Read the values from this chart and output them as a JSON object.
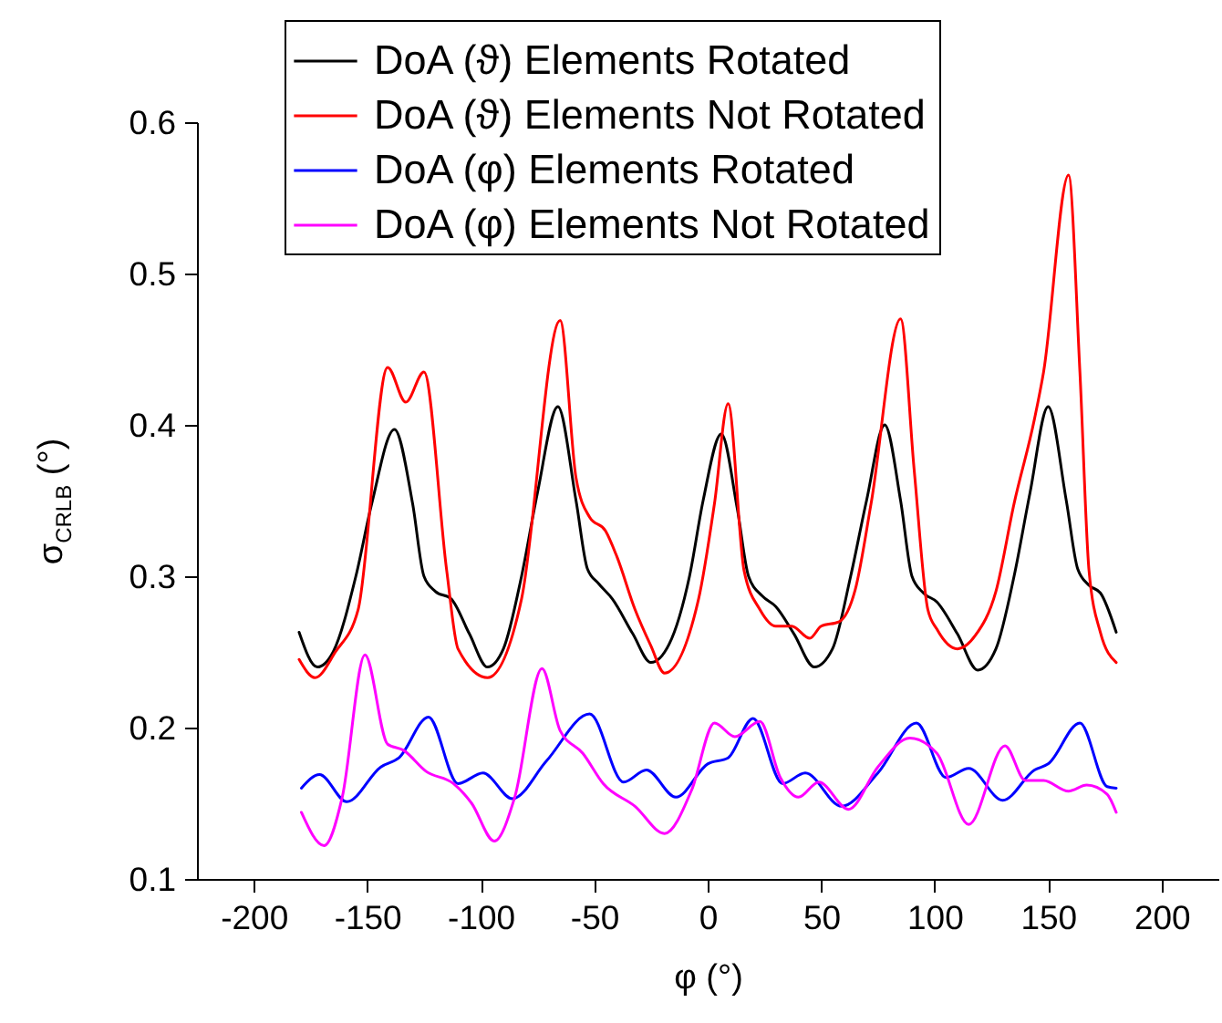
{
  "chart_data": {
    "type": "line",
    "xlabel": "φ (°)",
    "ylabel": "σ$_{CRLB}$ (°)",
    "xlim": [
      -225,
      225
    ],
    "ylim": [
      0.1,
      0.6
    ],
    "xticks": [
      -200,
      -150,
      -100,
      -50,
      0,
      50,
      100,
      150,
      200
    ],
    "yticks": [
      0.1,
      0.2,
      0.3,
      0.4,
      0.5,
      0.6
    ],
    "legend": "top",
    "grid": false,
    "series": [
      {
        "name": "DoA (ϑ) Elements Rotated",
        "color": "#000000",
        "x": [
          -180,
          -172,
          -165,
          -155,
          -148,
          -138,
          -130,
          -125,
          -120,
          -113,
          -105,
          -97,
          -90,
          -82,
          -75,
          -66,
          -58,
          -53,
          -48,
          -42,
          -33,
          -25,
          -17,
          -8,
          -2,
          6,
          13,
          18,
          24,
          30,
          38,
          47,
          55,
          63,
          70,
          78,
          85,
          90,
          95,
          101,
          110,
          119,
          127,
          135,
          142,
          150,
          158,
          163,
          168,
          173,
          180
        ],
        "values": [
          0.263,
          0.24,
          0.25,
          0.3,
          0.348,
          0.397,
          0.348,
          0.3,
          0.29,
          0.285,
          0.262,
          0.24,
          0.252,
          0.3,
          0.355,
          0.412,
          0.35,
          0.305,
          0.295,
          0.285,
          0.262,
          0.243,
          0.255,
          0.3,
          0.35,
          0.394,
          0.345,
          0.3,
          0.287,
          0.28,
          0.262,
          0.24,
          0.252,
          0.3,
          0.35,
          0.4,
          0.35,
          0.3,
          0.289,
          0.283,
          0.262,
          0.238,
          0.252,
          0.3,
          0.355,
          0.412,
          0.35,
          0.305,
          0.294,
          0.289,
          0.263
        ]
      },
      {
        "name": "DoA (ϑ) Elements Not Rotated",
        "color": "#ff0000",
        "x": [
          -180,
          -173,
          -164,
          -154,
          -141,
          -133,
          -125,
          -115,
          -110,
          -97,
          -82,
          -65,
          -58,
          -52,
          -45,
          -40,
          -32,
          -25,
          -19,
          -4,
          3,
          9,
          16,
          23,
          30,
          37,
          45,
          50,
          58,
          65,
          72,
          85,
          91,
          97,
          101,
          110,
          118,
          127,
          135,
          144,
          148,
          159,
          164,
          168,
          173,
          180
        ],
        "values": [
          0.245,
          0.233,
          0.25,
          0.278,
          0.438,
          0.415,
          0.435,
          0.304,
          0.252,
          0.233,
          0.285,
          0.469,
          0.365,
          0.339,
          0.33,
          0.313,
          0.278,
          0.254,
          0.236,
          0.285,
          0.348,
          0.414,
          0.304,
          0.278,
          0.267,
          0.267,
          0.259,
          0.267,
          0.27,
          0.291,
          0.348,
          0.47,
          0.37,
          0.278,
          0.265,
          0.252,
          0.261,
          0.29,
          0.348,
          0.404,
          0.435,
          0.565,
          0.435,
          0.304,
          0.263,
          0.243
        ]
      },
      {
        "name": "DoA (φ) Elements Rotated",
        "color": "#0000ff",
        "x": [
          -179,
          -171,
          -159,
          -144,
          -136,
          -123,
          -110,
          -99,
          -86,
          -71,
          -52,
          -37,
          -27,
          -14,
          0,
          9,
          20,
          33,
          43,
          59,
          75,
          92,
          105,
          115,
          130,
          144,
          150,
          164,
          176,
          180
        ],
        "values": [
          0.16,
          0.169,
          0.151,
          0.174,
          0.18,
          0.207,
          0.163,
          0.17,
          0.153,
          0.178,
          0.209,
          0.164,
          0.172,
          0.154,
          0.176,
          0.18,
          0.206,
          0.163,
          0.17,
          0.148,
          0.17,
          0.203,
          0.167,
          0.173,
          0.152,
          0.172,
          0.176,
          0.203,
          0.161,
          0.16
        ]
      },
      {
        "name": "DoA (φ) Elements Not Rotated",
        "color": "#ff00ff",
        "x": [
          -179,
          -169,
          -161,
          -151,
          -141,
          -134,
          -124,
          -112,
          -104,
          -94,
          -85,
          -73,
          -65,
          -55,
          -46,
          -32,
          -19,
          -7,
          3,
          12,
          23,
          32,
          40,
          49,
          62,
          75,
          89,
          101,
          115,
          131,
          140,
          148,
          159,
          167,
          176,
          180
        ],
        "values": [
          0.144,
          0.122,
          0.154,
          0.248,
          0.189,
          0.185,
          0.171,
          0.163,
          0.15,
          0.125,
          0.154,
          0.239,
          0.198,
          0.183,
          0.163,
          0.148,
          0.13,
          0.159,
          0.203,
          0.194,
          0.204,
          0.167,
          0.154,
          0.164,
          0.146,
          0.174,
          0.193,
          0.183,
          0.136,
          0.188,
          0.165,
          0.165,
          0.158,
          0.162,
          0.156,
          0.144
        ]
      }
    ]
  }
}
